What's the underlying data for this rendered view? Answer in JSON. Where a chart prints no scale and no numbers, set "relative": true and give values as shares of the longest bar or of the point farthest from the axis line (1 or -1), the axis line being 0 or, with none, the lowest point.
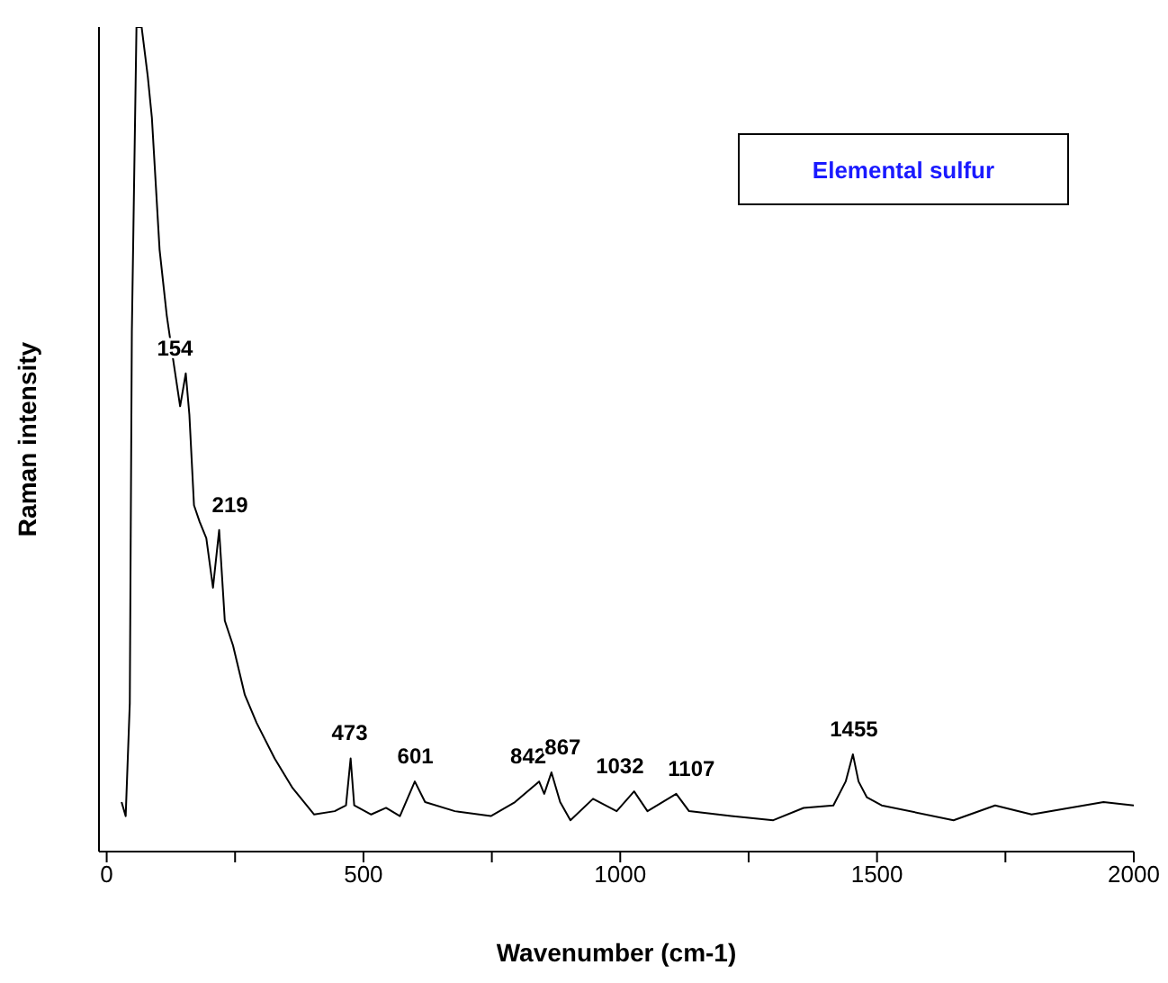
{
  "chart_data": {
    "type": "line",
    "title": "Elemental sulfur",
    "xlabel": "Wavenumber (cm-1)",
    "ylabel": "Raman intensity",
    "relative": true,
    "xlim": [
      -15,
      2000
    ],
    "xticks": [
      0,
      {
        "value": 250,
        "label": null
      },
      500,
      {
        "value": 750,
        "label": null
      },
      1000,
      {
        "value": 1250,
        "label": null
      },
      1500,
      {
        "value": 1750,
        "label": null
      },
      2000
    ],
    "grid": false,
    "legend": false,
    "marker": "none",
    "line_style": "solid",
    "series": [
      {
        "color": "#000000",
        "x": [
          29,
          37,
          45,
          49,
          58,
          68,
          80,
          88,
          103,
          117,
          131,
          143,
          154,
          161,
          170,
          181,
          194,
          207,
          219,
          230,
          246,
          269,
          292,
          327,
          362,
          404,
          444,
          466,
          475,
          482,
          515,
          544,
          571,
          600,
          620,
          678,
          748,
          795,
          842,
          852,
          866,
          883,
          903,
          947,
          993,
          1027,
          1053,
          1109,
          1134,
          1216,
          1298,
          1357,
          1415,
          1439,
          1453,
          1464,
          1480,
          1509,
          1649,
          1730,
          1801,
          1941,
          2000
        ],
        "values": [
          0.06,
          0.043,
          0.18,
          0.63,
          1.0,
          1.0,
          0.94,
          0.89,
          0.73,
          0.65,
          0.59,
          0.54,
          0.58,
          0.53,
          0.42,
          0.4,
          0.38,
          0.32,
          0.39,
          0.28,
          0.25,
          0.19,
          0.156,
          0.113,
          0.077,
          0.045,
          0.049,
          0.056,
          0.113,
          0.056,
          0.045,
          0.053,
          0.043,
          0.085,
          0.06,
          0.049,
          0.043,
          0.06,
          0.085,
          0.07,
          0.096,
          0.06,
          0.038,
          0.064,
          0.049,
          0.073,
          0.049,
          0.07,
          0.049,
          0.043,
          0.038,
          0.053,
          0.056,
          0.085,
          0.118,
          0.085,
          0.066,
          0.056,
          0.038,
          0.056,
          0.045,
          0.06,
          0.056
        ]
      }
    ],
    "annotations": [
      {
        "text": "154",
        "x": 154,
        "y": 0.58
      },
      {
        "text": "219",
        "x": 219,
        "y": 0.39
      },
      {
        "text": "473",
        "x": 473,
        "y": 0.113
      },
      {
        "text": "601",
        "x": 601,
        "y": 0.085
      },
      {
        "text": "842",
        "x": 842,
        "y": 0.085
      },
      {
        "text": "867",
        "x": 867,
        "y": 0.096
      },
      {
        "text": "1032",
        "x": 1032,
        "y": 0.073
      },
      {
        "text": "1107",
        "x": 1107,
        "y": 0.07
      },
      {
        "text": "1455",
        "x": 1455,
        "y": 0.118
      }
    ]
  }
}
